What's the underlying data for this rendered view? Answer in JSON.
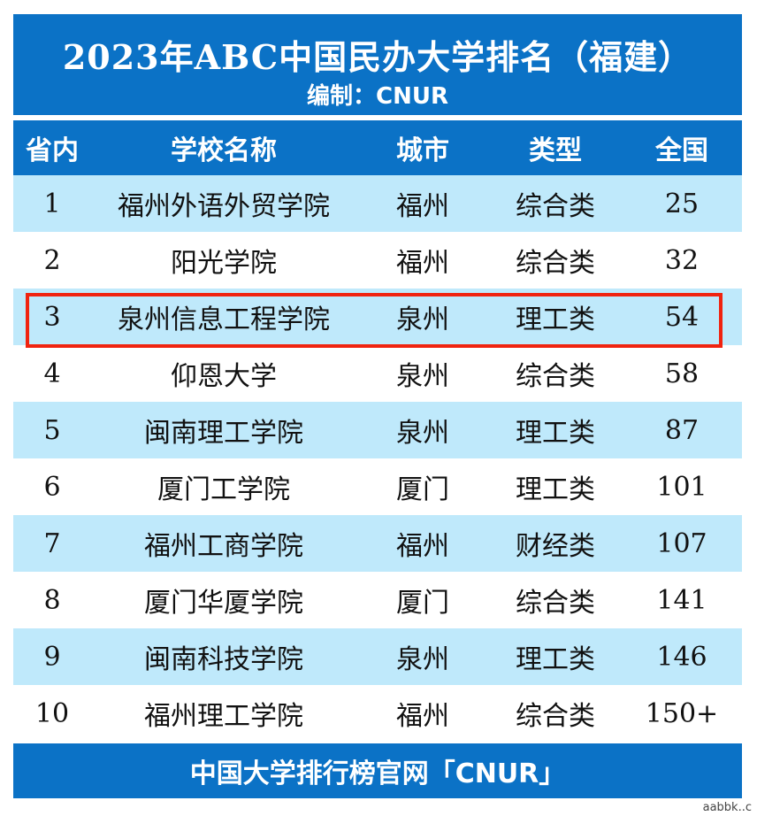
{
  "title": "2023年ABC中国民办大学排名（福建）",
  "subtitle": "编制：CNUR",
  "columns": [
    "省内",
    "学校名称",
    "城市",
    "类型",
    "全国"
  ],
  "rows": [
    {
      "rank": "1",
      "name": "福州外语外贸学院",
      "city": "福州",
      "type": "综合类",
      "national": "25"
    },
    {
      "rank": "2",
      "name": "阳光学院",
      "city": "福州",
      "type": "综合类",
      "national": "32"
    },
    {
      "rank": "3",
      "name": "泉州信息工程学院",
      "city": "泉州",
      "type": "理工类",
      "national": "54"
    },
    {
      "rank": "4",
      "name": "仰恩大学",
      "city": "泉州",
      "type": "综合类",
      "national": "58"
    },
    {
      "rank": "5",
      "name": "闽南理工学院",
      "city": "泉州",
      "type": "理工类",
      "national": "87"
    },
    {
      "rank": "6",
      "name": "厦门工学院",
      "city": "厦门",
      "type": "理工类",
      "national": "101"
    },
    {
      "rank": "7",
      "name": "福州工商学院",
      "city": "福州",
      "type": "财经类",
      "national": "107"
    },
    {
      "rank": "8",
      "name": "厦门华厦学院",
      "city": "厦门",
      "type": "综合类",
      "national": "141"
    },
    {
      "rank": "9",
      "name": "闽南科技学院",
      "city": "泉州",
      "type": "理工类",
      "national": "146"
    },
    {
      "rank": "10",
      "name": "福州理工学院",
      "city": "福州",
      "type": "综合类",
      "national": "150+"
    }
  ],
  "footer": "中国大学排行榜官网「CNUR」",
  "watermark": "aabbk..c",
  "colors": {
    "header_bg": "#0b72c6",
    "alt_row_bg": "#bfe9fb",
    "highlight_border": "#f0230f"
  }
}
